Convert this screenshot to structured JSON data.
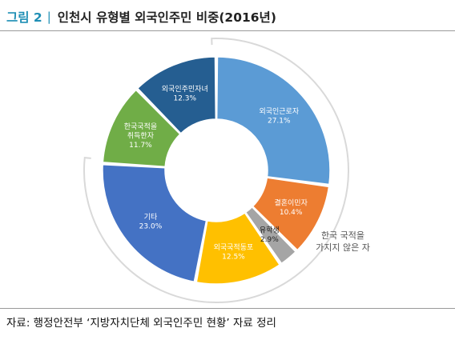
{
  "figure": {
    "number": "그림 2",
    "separator": "|",
    "title": "인천시 유형별 외국인주민 비중(2016년)",
    "source": "자료: 행정안전부 ‘지방자치단체 외국인주민 현황’ 자료 정리"
  },
  "chart_data": {
    "type": "pie",
    "title": "인천시 유형별 외국인주민 비중(2016년)",
    "unit": "%",
    "categories": [
      "외국인근로자",
      "결혼이민자",
      "유학생",
      "외국국적동포",
      "기타",
      "한국국적을 취득한자",
      "외국인주민자녀"
    ],
    "values": [
      27.1,
      10.4,
      2.9,
      12.5,
      23.0,
      11.7,
      12.3
    ],
    "value_labels": [
      "27.1%",
      "10.4%",
      "2.9%",
      "12.5%",
      "23.0%",
      "11.7%",
      "12.3%"
    ],
    "label_lines": [
      [
        "외국인근로자"
      ],
      [
        "결혼이민자"
      ],
      [
        "유학생"
      ],
      [
        "외국국적동포"
      ],
      [
        "기타"
      ],
      [
        "한국국적을",
        "취득한자"
      ],
      [
        "외국인주민자녀"
      ]
    ],
    "colors": [
      "#5b9bd5",
      "#ed7d31",
      "#a5a5a5",
      "#ffc000",
      "#4472c4",
      "#70ad47",
      "#255e91"
    ],
    "style": "donut",
    "annotation": {
      "lines": [
        "한국 국적을",
        "가지지 않은 자"
      ],
      "spans_categories": [
        "외국인근로자",
        "결혼이민자",
        "유학생",
        "외국국적동포",
        "기타"
      ]
    }
  }
}
